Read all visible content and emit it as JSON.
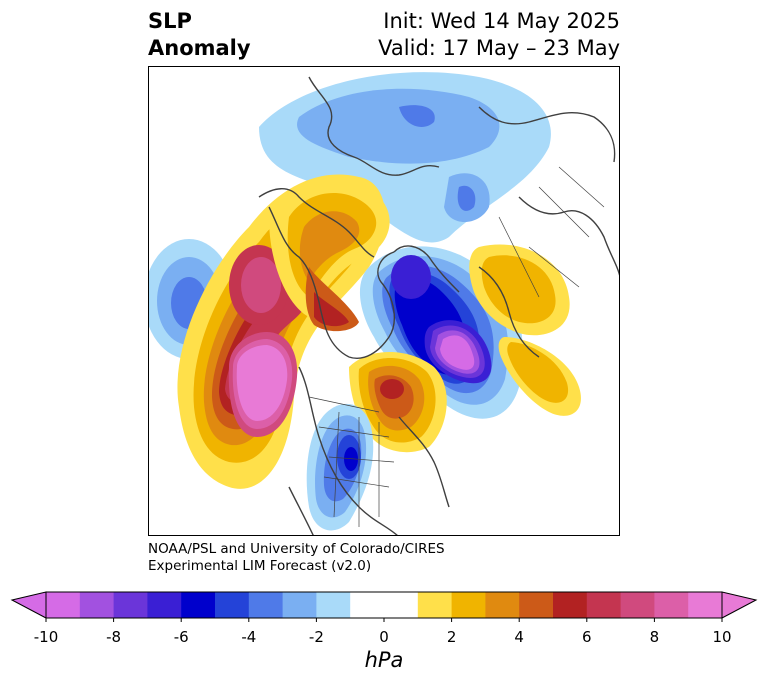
{
  "header": {
    "title_line1": "SLP",
    "title_line2": "Anomaly",
    "init": "Init: Wed 14 May 2025",
    "valid": "Valid: 17 May – 23 May"
  },
  "credit": {
    "line1": "NOAA/PSL and University of Colorado/CIRES",
    "line2": "Experimental LIM Forecast (v2.0)"
  },
  "colorbar": {
    "unit": "hPa",
    "ticks": [
      "-10",
      "-8",
      "-6",
      "-4",
      "-2",
      "0",
      "2",
      "4",
      "6",
      "8",
      "10"
    ],
    "colors": [
      "#d56be6",
      "#a251e0",
      "#6b35d9",
      "#3a1fd4",
      "#0000cc",
      "#2443d8",
      "#4f7ae8",
      "#7aaff2",
      "#a9daf9",
      "#ffffff",
      "#ffffff",
      "#ffe04a",
      "#f0b400",
      "#e08a10",
      "#cc5a18",
      "#b22222",
      "#c43550",
      "#d04a7e",
      "#dc5fa8",
      "#e87ad6"
    ]
  },
  "map": {
    "projection": "north-polar-stereographic",
    "coastline_color": "#404040",
    "anomaly_centers": [
      {
        "name": "north-pacific-high",
        "value_hpa": 10
      },
      {
        "name": "alaska-canada-high",
        "value_hpa": 8
      },
      {
        "name": "gulf-of-alaska-low",
        "value_hpa": -4
      },
      {
        "name": "hudson-bay-low",
        "value_hpa": -6
      },
      {
        "name": "labrador-sea-low",
        "value_hpa": -10
      },
      {
        "name": "central-us-low",
        "value_hpa": -6
      },
      {
        "name": "eastern-canada-high",
        "value_hpa": 6
      },
      {
        "name": "eurasia-high",
        "value_hpa": 2
      },
      {
        "name": "arctic-low",
        "value_hpa": -4
      }
    ]
  }
}
